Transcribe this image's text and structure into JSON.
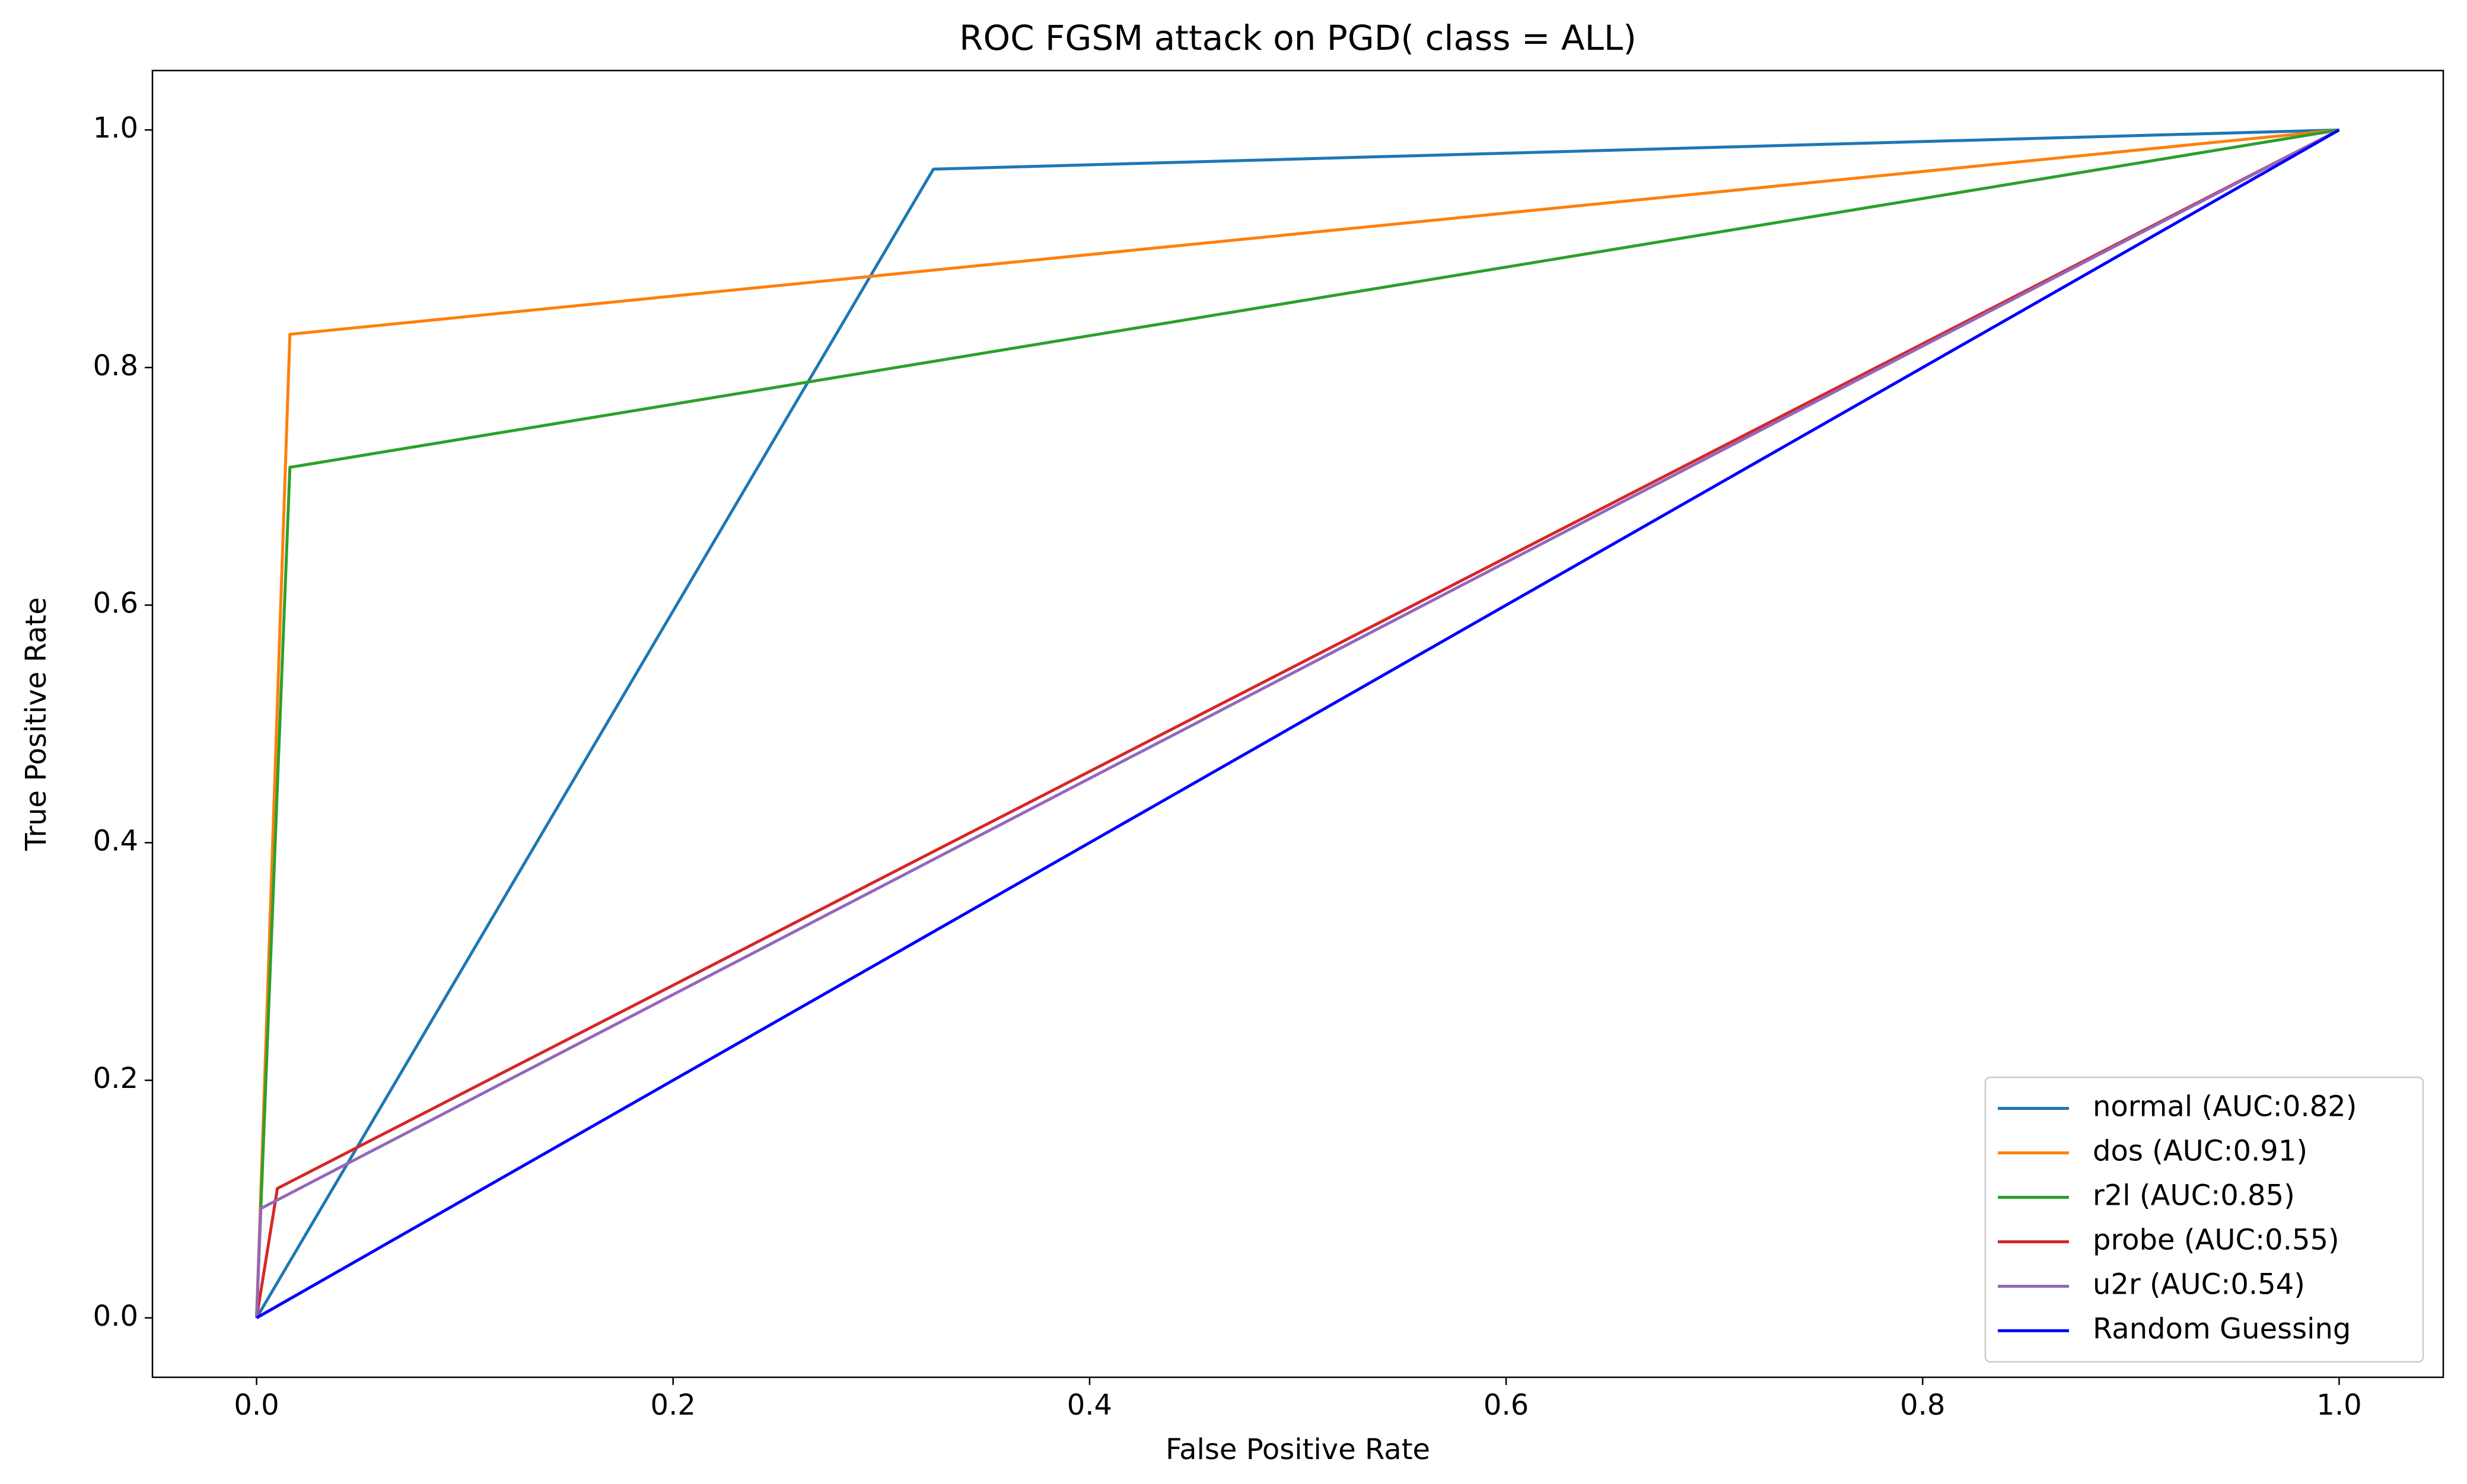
{
  "chart_data": {
    "type": "line",
    "title": "ROC FGSM attack on PGD( class = ALL)",
    "x_label": "False Positive Rate",
    "y_label": "True Positive Rate",
    "xlim": [
      -0.05,
      1.05
    ],
    "ylim": [
      -0.05,
      1.05
    ],
    "xticks": [
      {
        "value": 0,
        "label": "0.0"
      },
      0.2,
      0.4,
      0.6,
      0.8,
      {
        "value": 1,
        "label": "1.0"
      }
    ],
    "yticks": [
      {
        "value": 0,
        "label": "0.0"
      },
      0.2,
      0.4,
      0.6,
      0.8,
      {
        "value": 1,
        "label": "1.0"
      }
    ],
    "legend": "lower right",
    "series": [
      {
        "name": "normal (AUC:0.82)",
        "color": "#1f77b4",
        "x": [
          0,
          0.325,
          1
        ],
        "values": [
          0,
          0.967,
          1
        ]
      },
      {
        "name": "dos (AUC:0.91)",
        "color": "#ff7f0e",
        "x": [
          0,
          0.016,
          1
        ],
        "values": [
          0,
          0.828,
          1
        ]
      },
      {
        "name": "r2l (AUC:0.85)",
        "color": "#2ca02c",
        "x": [
          0,
          0.016,
          1
        ],
        "values": [
          0,
          0.716,
          1
        ]
      },
      {
        "name": "probe (AUC:0.55)",
        "color": "#d62728",
        "x": [
          0,
          0.01,
          1
        ],
        "values": [
          0,
          0.109,
          1
        ]
      },
      {
        "name": "u2r (AUC:0.54)",
        "color": "#9467bd",
        "x": [
          0,
          0.002,
          1
        ],
        "values": [
          0,
          0.092,
          1
        ]
      },
      {
        "name": "Random Guessing",
        "color": "#0000ff",
        "x": [
          0,
          1
        ],
        "values": [
          0,
          1
        ]
      }
    ]
  }
}
